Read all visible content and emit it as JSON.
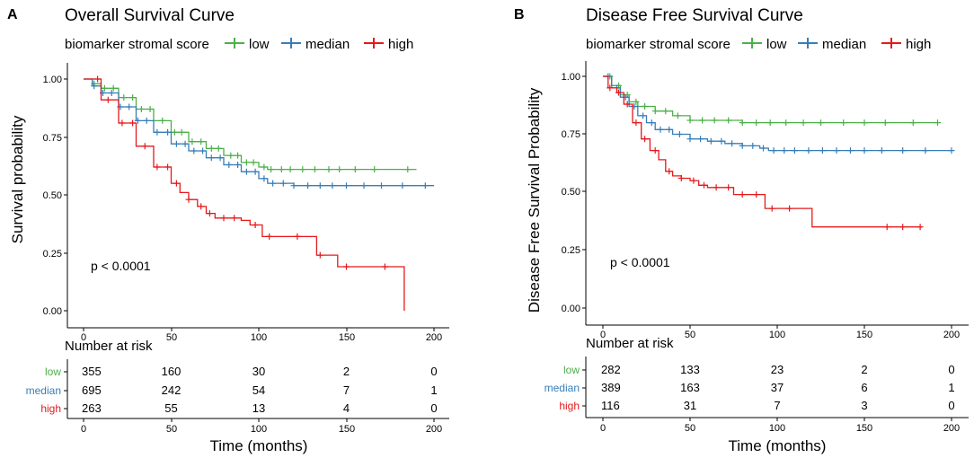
{
  "colors": {
    "low": "#4daf4a",
    "median": "#377eb8",
    "high": "#e41a1c",
    "axis": "#000000"
  },
  "chart_data": [
    {
      "type": "line",
      "panel_label": "A",
      "title": "Overall Survival Curve",
      "legend_title": "biomarker stromal score",
      "xlabel": "Time (months)",
      "ylabel": "Survival probability",
      "xlim": [
        0,
        200
      ],
      "ylim": [
        0,
        1
      ],
      "xticks": [
        "0",
        "50",
        "100",
        "150",
        "200"
      ],
      "yticks": [
        "0.00",
        "0.25",
        "0.50",
        "0.75",
        "1.00"
      ],
      "pvalue": "p < 0.0001",
      "risk_title": "Number at risk",
      "risk_times": [
        0,
        50,
        100,
        150,
        200
      ],
      "series": [
        {
          "name": "low",
          "key": "low",
          "points": [
            [
              0,
              1.0
            ],
            [
              5,
              0.98
            ],
            [
              10,
              0.96
            ],
            [
              20,
              0.92
            ],
            [
              30,
              0.87
            ],
            [
              40,
              0.82
            ],
            [
              50,
              0.77
            ],
            [
              60,
              0.73
            ],
            [
              70,
              0.7
            ],
            [
              80,
              0.67
            ],
            [
              90,
              0.64
            ],
            [
              100,
              0.62
            ],
            [
              105,
              0.61
            ],
            [
              190,
              0.61
            ]
          ],
          "censor": [
            6,
            12,
            17,
            23,
            28,
            33,
            38,
            45,
            52,
            56,
            62,
            67,
            73,
            77,
            84,
            88,
            93,
            97,
            103,
            107,
            113,
            118,
            125,
            132,
            140,
            146,
            155,
            166,
            185
          ],
          "risk": [
            "355",
            "160",
            "30",
            "2",
            "0"
          ]
        },
        {
          "name": "median",
          "key": "median",
          "points": [
            [
              0,
              1.0
            ],
            [
              5,
              0.97
            ],
            [
              10,
              0.94
            ],
            [
              20,
              0.88
            ],
            [
              30,
              0.82
            ],
            [
              40,
              0.77
            ],
            [
              50,
              0.72
            ],
            [
              60,
              0.69
            ],
            [
              70,
              0.66
            ],
            [
              80,
              0.63
            ],
            [
              90,
              0.6
            ],
            [
              100,
              0.57
            ],
            [
              105,
              0.55
            ],
            [
              120,
              0.54
            ],
            [
              200,
              0.54
            ]
          ],
          "censor": [
            6,
            11,
            16,
            21,
            26,
            31,
            36,
            42,
            48,
            53,
            58,
            63,
            68,
            73,
            78,
            83,
            88,
            93,
            98,
            103,
            108,
            114,
            120,
            128,
            135,
            142,
            150,
            160,
            170,
            182,
            195
          ],
          "risk": [
            "695",
            "242",
            "54",
            "7",
            "1"
          ]
        },
        {
          "name": "high",
          "key": "high",
          "points": [
            [
              0,
              1.0
            ],
            [
              10,
              0.91
            ],
            [
              20,
              0.81
            ],
            [
              30,
              0.71
            ],
            [
              40,
              0.62
            ],
            [
              50,
              0.55
            ],
            [
              55,
              0.51
            ],
            [
              60,
              0.48
            ],
            [
              65,
              0.45
            ],
            [
              70,
              0.42
            ],
            [
              75,
              0.4
            ],
            [
              90,
              0.39
            ],
            [
              95,
              0.37
            ],
            [
              100,
              0.37
            ],
            [
              102,
              0.32
            ],
            [
              130,
              0.32
            ],
            [
              133,
              0.24
            ],
            [
              145,
              0.24
            ],
            [
              145,
              0.19
            ],
            [
              183,
              0.19
            ],
            [
              183,
              0.0
            ]
          ],
          "censor": [
            8,
            14,
            22,
            28,
            35,
            42,
            48,
            53,
            60,
            67,
            72,
            80,
            86,
            98,
            106,
            122,
            135,
            150,
            172
          ],
          "risk": [
            "263",
            "55",
            "13",
            "4",
            "0"
          ]
        }
      ]
    },
    {
      "type": "line",
      "panel_label": "B",
      "title": "Disease Free Survival Curve",
      "legend_title": "biomarker stromal score",
      "xlabel": "Time (months)",
      "ylabel": "Disease Free Survival Probability",
      "xlim": [
        0,
        200
      ],
      "ylim": [
        0,
        1
      ],
      "xticks": [
        "0",
        "50",
        "100",
        "150",
        "200"
      ],
      "yticks": [
        "0.00",
        "0.25",
        "0.50",
        "0.75",
        "1.00"
      ],
      "pvalue": "p < 0.0001",
      "risk_title": "Number at risk",
      "risk_times": [
        0,
        50,
        100,
        150,
        200
      ],
      "series": [
        {
          "name": "low",
          "key": "low",
          "points": [
            [
              0,
              1.0
            ],
            [
              5,
              0.96
            ],
            [
              10,
              0.92
            ],
            [
              15,
              0.89
            ],
            [
              20,
              0.87
            ],
            [
              30,
              0.85
            ],
            [
              40,
              0.83
            ],
            [
              50,
              0.81
            ],
            [
              60,
              0.81
            ],
            [
              80,
              0.8
            ],
            [
              192,
              0.8
            ]
          ],
          "censor": [
            4,
            9,
            14,
            19,
            24,
            30,
            36,
            43,
            50,
            57,
            64,
            72,
            80,
            88,
            96,
            105,
            115,
            125,
            138,
            150,
            162,
            178,
            192
          ],
          "risk": [
            "282",
            "133",
            "23",
            "2",
            "0"
          ]
        },
        {
          "name": "median",
          "key": "median",
          "points": [
            [
              0,
              1.0
            ],
            [
              5,
              0.95
            ],
            [
              10,
              0.91
            ],
            [
              15,
              0.87
            ],
            [
              20,
              0.83
            ],
            [
              25,
              0.8
            ],
            [
              30,
              0.77
            ],
            [
              40,
              0.75
            ],
            [
              50,
              0.73
            ],
            [
              60,
              0.72
            ],
            [
              70,
              0.71
            ],
            [
              80,
              0.7
            ],
            [
              90,
              0.69
            ],
            [
              95,
              0.68
            ],
            [
              200,
              0.68
            ]
          ],
          "censor": [
            3,
            8,
            13,
            18,
            23,
            28,
            33,
            38,
            44,
            50,
            56,
            62,
            68,
            74,
            80,
            86,
            92,
            98,
            104,
            110,
            118,
            126,
            134,
            142,
            150,
            160,
            172,
            185,
            200
          ],
          "risk": [
            "389",
            "163",
            "37",
            "6",
            "1"
          ]
        },
        {
          "name": "high",
          "key": "high",
          "points": [
            [
              0,
              1.0
            ],
            [
              3,
              0.95
            ],
            [
              8,
              0.93
            ],
            [
              12,
              0.88
            ],
            [
              17,
              0.8
            ],
            [
              22,
              0.73
            ],
            [
              27,
              0.68
            ],
            [
              32,
              0.64
            ],
            [
              36,
              0.59
            ],
            [
              40,
              0.57
            ],
            [
              45,
              0.56
            ],
            [
              50,
              0.55
            ],
            [
              55,
              0.53
            ],
            [
              60,
              0.52
            ],
            [
              75,
              0.49
            ],
            [
              93,
              0.43
            ],
            [
              120,
              0.43
            ],
            [
              120,
              0.35
            ],
            [
              183,
              0.35
            ]
          ],
          "censor": [
            4,
            9,
            14,
            19,
            24,
            30,
            38,
            45,
            52,
            58,
            65,
            72,
            80,
            88,
            97,
            107,
            163,
            172,
            182
          ],
          "risk": [
            "116",
            "31",
            "7",
            "3",
            "0"
          ]
        }
      ]
    }
  ]
}
